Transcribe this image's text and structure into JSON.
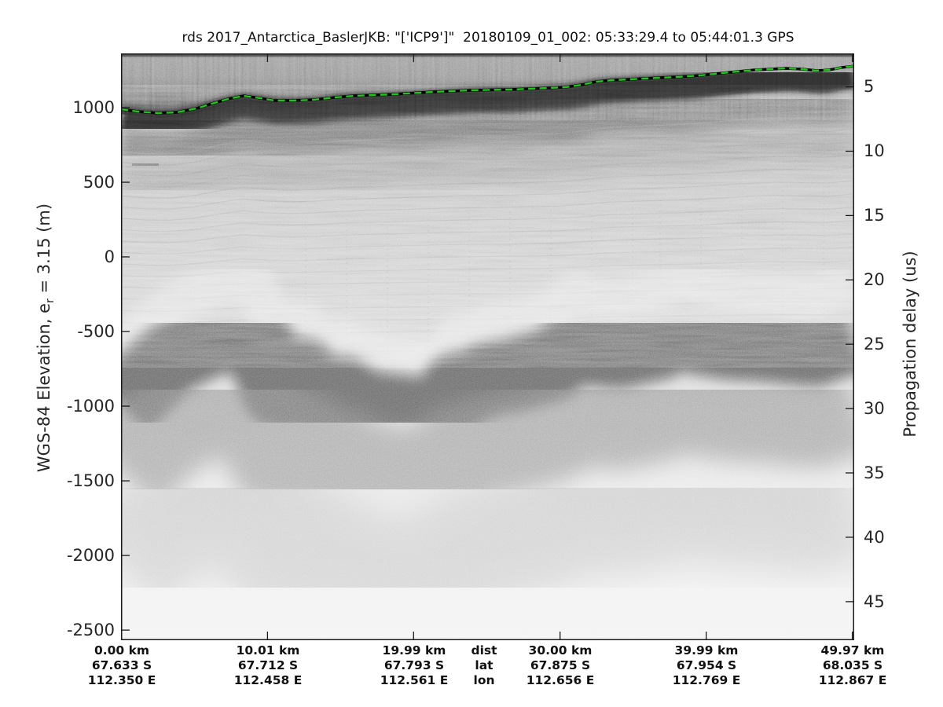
{
  "title": "rds 2017_Antarctica_BaslerJKB: \"['ICP9']\"  20180109_01_002: 05:33:29.4 to 05:44:01.3 GPS",
  "axes": {
    "left": {
      "label_prefix": "WGS-84 Elevation, e",
      "label_sub": "r",
      "label_suffix": " = 3.15 (m)",
      "ticks": [
        "1000",
        "500",
        "0",
        "-500",
        "-1000",
        "-1500",
        "-2000",
        "-2500"
      ]
    },
    "right": {
      "label": "Propagation delay (us)",
      "ticks": [
        "5",
        "10",
        "15",
        "20",
        "25",
        "30",
        "35",
        "40",
        "45"
      ]
    },
    "bottom": {
      "row_headers": [
        "dist",
        "lat",
        "lon"
      ],
      "columns": [
        {
          "km": "0.00 km",
          "lat": "67.633 S",
          "lon": "112.350 E"
        },
        {
          "km": "10.01 km",
          "lat": "67.712 S",
          "lon": "112.458 E"
        },
        {
          "km": "19.99 km",
          "lat": "67.793 S",
          "lon": "112.561 E"
        },
        {
          "km": "30.00 km",
          "lat": "67.875 S",
          "lon": "112.656 E"
        },
        {
          "km": "39.99 km",
          "lat": "67.954 S",
          "lon": "112.769 E"
        },
        {
          "km": "49.97 km",
          "lat": "68.035 S",
          "lon": "112.867 E"
        }
      ]
    }
  },
  "colors": {
    "surface_pick": "#22c41e",
    "axis": "#1a1a1a",
    "background": "#ffffff"
  },
  "chart_data": {
    "type": "heatmap",
    "subtype": "radar-echogram",
    "title": "rds 2017_Antarctica_BaslerJKB: \"['ICP9']\"  20180109_01_002: 05:33:29.4 to 05:44:01.3 GPS",
    "ylabel_left": "WGS-84 Elevation, e_r = 3.15 (m)",
    "ylabel_right": "Propagation delay (us)",
    "xlabel_rows": [
      "dist",
      "lat",
      "lon"
    ],
    "x_ticks_km": [
      0.0,
      10.01,
      19.99,
      30.0,
      39.99,
      49.97
    ],
    "x_ticks_lat_S": [
      67.633,
      67.712,
      67.793,
      67.875,
      67.954,
      68.035
    ],
    "x_ticks_lon_E": [
      112.35,
      112.458,
      112.561,
      112.656,
      112.769,
      112.867
    ],
    "left_ticks_m": [
      1000,
      500,
      0,
      -500,
      -1000,
      -1500,
      -2000,
      -2500
    ],
    "right_ticks_us": [
      5,
      10,
      15,
      20,
      25,
      30,
      35,
      40,
      45
    ],
    "xlim_km": [
      0,
      50.1
    ],
    "ylim_elevation_m": [
      -2568,
      1363
    ],
    "ylim_delay_us": [
      2.4,
      48.0
    ],
    "grid": false,
    "legend": false,
    "surface_pick_color": "#22c41e",
    "surface_line_m": [
      [
        0,
        989
      ],
      [
        1.1,
        974
      ],
      [
        2.5,
        963
      ],
      [
        3.8,
        968
      ],
      [
        5.2,
        995
      ],
      [
        6.2,
        1026
      ],
      [
        7.3,
        1058
      ],
      [
        8.4,
        1079
      ],
      [
        9.5,
        1063
      ],
      [
        10.5,
        1047
      ],
      [
        11.9,
        1047
      ],
      [
        13.2,
        1053
      ],
      [
        14.6,
        1068
      ],
      [
        15.9,
        1079
      ],
      [
        18.6,
        1089
      ],
      [
        21.3,
        1105
      ],
      [
        24,
        1116
      ],
      [
        26.6,
        1121
      ],
      [
        29.3,
        1132
      ],
      [
        30.4,
        1137
      ],
      [
        31.5,
        1153
      ],
      [
        32.5,
        1174
      ],
      [
        33.6,
        1184
      ],
      [
        34.7,
        1189
      ],
      [
        35.8,
        1195
      ],
      [
        36.8,
        1200
      ],
      [
        37.9,
        1205
      ],
      [
        39,
        1211
      ],
      [
        40.1,
        1221
      ],
      [
        41.1,
        1232
      ],
      [
        42.2,
        1242
      ],
      [
        43.3,
        1253
      ],
      [
        44.4,
        1258
      ],
      [
        45.4,
        1263
      ],
      [
        46.5,
        1258
      ],
      [
        47.6,
        1247
      ],
      [
        48.4,
        1253
      ],
      [
        49.2,
        1268
      ],
      [
        50.1,
        1279
      ]
    ],
    "bed_line_m": [
      [
        0,
        -842
      ],
      [
        0.9,
        -753
      ],
      [
        1.7,
        -674
      ],
      [
        2.5,
        -595
      ],
      [
        3.5,
        -516
      ],
      [
        4.6,
        -463
      ],
      [
        5.7,
        -411
      ],
      [
        6.5,
        -384
      ],
      [
        7.3,
        -363
      ],
      [
        8.1,
        -374
      ],
      [
        8.9,
        -358
      ],
      [
        9.7,
        -489
      ],
      [
        10.3,
        -621
      ],
      [
        10.8,
        -742
      ],
      [
        11.1,
        -674
      ],
      [
        11.3,
        -753
      ],
      [
        11.9,
        -647
      ],
      [
        12.4,
        -632
      ],
      [
        12.9,
        -700
      ],
      [
        13.5,
        -789
      ],
      [
        14.3,
        -789
      ],
      [
        15.1,
        -753
      ],
      [
        15.9,
        -805
      ],
      [
        16.7,
        -847
      ],
      [
        17.5,
        -858
      ],
      [
        18.6,
        -874
      ],
      [
        19.7,
        -884
      ],
      [
        20.4,
        -895
      ],
      [
        21.3,
        -884
      ],
      [
        22.2,
        -858
      ],
      [
        23,
        -726
      ],
      [
        24,
        -711
      ],
      [
        25,
        -663
      ],
      [
        26.8,
        -632
      ],
      [
        28.2,
        -595
      ],
      [
        29.5,
        -558
      ],
      [
        30.4,
        -489
      ],
      [
        31.3,
        -437
      ],
      [
        32.3,
        -463
      ],
      [
        34,
        -479
      ],
      [
        35.5,
        -447
      ],
      [
        36.7,
        -421
      ],
      [
        37.6,
        -374
      ],
      [
        38.6,
        -342
      ],
      [
        39.5,
        -384
      ],
      [
        40.2,
        -395
      ],
      [
        41.1,
        -411
      ],
      [
        42,
        -421
      ],
      [
        43.3,
        -426
      ],
      [
        44.7,
        -437
      ],
      [
        46,
        -453
      ],
      [
        47.4,
        -463
      ],
      [
        48.4,
        -426
      ],
      [
        49.2,
        -395
      ],
      [
        50.1,
        -368
      ]
    ]
  }
}
